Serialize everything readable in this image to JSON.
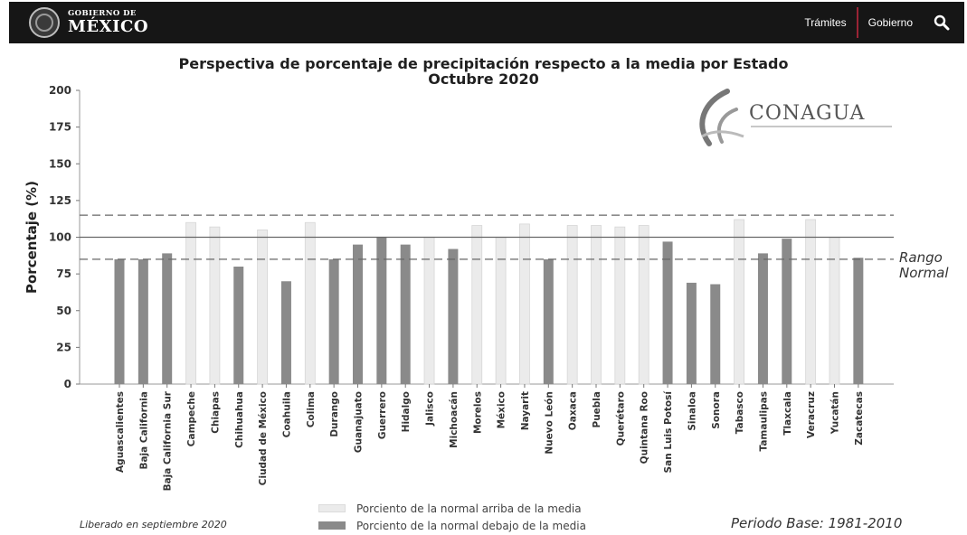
{
  "header": {
    "logo_top": "GOBIERNO DE",
    "logo_main": "MÉXICO",
    "nav": [
      "Trámites",
      "Gobierno"
    ],
    "search_icon": "search-icon"
  },
  "logo": {
    "name": "CONAGUA"
  },
  "annotations": {
    "range_label_line1": "Rango",
    "range_label_line2": "Normal",
    "released": "Liberado en septiembre 2020",
    "base_period": "Periodo Base: 1981-2010"
  },
  "legend": {
    "above": "Porciento de la normal arriba de la media",
    "below": "Porciento de la normal debajo de la media"
  },
  "colors": {
    "above_bar": "#ebebeb",
    "below_bar": "#8a8a8a",
    "accent": "#9b2335"
  },
  "chart_data": {
    "type": "bar",
    "title": "Perspectiva de porcentaje de precipitación respecto a la media por Estado",
    "subtitle": "Octubre 2020",
    "ylabel": "Porcentaje (%)",
    "xlabel": "",
    "ylim": [
      0,
      200
    ],
    "yticks": [
      0,
      25,
      50,
      75,
      100,
      125,
      150,
      175,
      200
    ],
    "reference_lines": [
      {
        "value": 100,
        "style": "solid"
      },
      {
        "value": 85,
        "style": "dashed"
      },
      {
        "value": 115,
        "style": "dashed"
      }
    ],
    "grid": false,
    "legend_position": "bottom",
    "categories": [
      "Aguascalientes",
      "Baja California",
      "Baja California Sur",
      "Campeche",
      "Chiapas",
      "Chihuahua",
      "Ciudad de México",
      "Coahuila",
      "Colima",
      "Durango",
      "Guanajuato",
      "Guerrero",
      "Hidalgo",
      "Jalisco",
      "Michoacán",
      "Morelos",
      "México",
      "Nayarit",
      "Nuevo León",
      "Oaxaca",
      "Puebla",
      "Querétaro",
      "Quintana Roo",
      "San Luis Potosí",
      "Sinaloa",
      "Sonora",
      "Tabasco",
      "Tamaulipas",
      "Tlaxcala",
      "Veracruz",
      "Yucatán",
      "Zacatecas"
    ],
    "values": [
      85,
      85,
      89,
      110,
      107,
      80,
      105,
      70,
      110,
      85,
      95,
      100,
      95,
      100,
      92,
      108,
      100,
      109,
      85,
      108,
      108,
      107,
      108,
      97,
      69,
      68,
      112,
      89,
      99,
      112,
      100,
      86
    ],
    "category": [
      "below",
      "below",
      "below",
      "above",
      "above",
      "below",
      "above",
      "below",
      "above",
      "below",
      "below",
      "below",
      "below",
      "above",
      "below",
      "above",
      "above",
      "above",
      "below",
      "above",
      "above",
      "above",
      "above",
      "below",
      "below",
      "below",
      "above",
      "below",
      "below",
      "above",
      "above",
      "below"
    ]
  }
}
